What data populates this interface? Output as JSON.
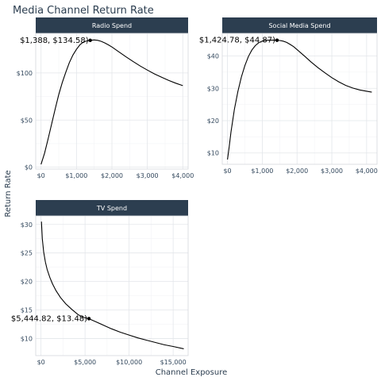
{
  "title": "Media Channel Return Rate",
  "chart_data": [
    {
      "type": "line",
      "panel_label": "Radio Spend",
      "xlabel": "Channel Exposure",
      "ylabel": "Return Rate",
      "xlim": [
        -150,
        4150
      ],
      "ylim": [
        -2,
        142
      ],
      "x_ticks": [
        0,
        1000,
        2000,
        3000,
        4000
      ],
      "x_tick_labels": [
        "$0",
        "$1,000",
        "$2,000",
        "$3,000",
        "$4,000"
      ],
      "y_ticks": [
        0,
        50,
        100
      ],
      "y_tick_labels": [
        "$0",
        "$50",
        "$100"
      ],
      "grid": true,
      "series": [
        {
          "x": [
            0,
            100,
            200,
            300,
            400,
            500,
            600,
            700,
            800,
            900,
            1000,
            1100,
            1200,
            1300,
            1388,
            1500,
            1600,
            1700,
            1800,
            1900,
            2000,
            2200,
            2400,
            2600,
            2800,
            3000,
            3200,
            3400,
            3600,
            3800,
            4000
          ],
          "y": [
            3,
            15,
            30,
            46,
            62,
            77,
            90,
            101,
            111,
            119,
            125,
            130,
            133,
            134,
            134.58,
            135,
            134.6,
            133.5,
            131.8,
            129.8,
            127.5,
            122.3,
            117,
            112,
            107.3,
            103,
            99,
            95.4,
            92.1,
            89.1,
            86.5
          ]
        }
      ],
      "marker": {
        "x": 1388,
        "y": 134.58
      },
      "annotation": "$1,388, $134.58)"
    },
    {
      "type": "line",
      "panel_label": "Social Media Spend",
      "xlabel": "Channel Exposure",
      "ylabel": "Return Rate",
      "xlim": [
        -150,
        4300
      ],
      "ylim": [
        6.5,
        47
      ],
      "x_ticks": [
        0,
        1000,
        2000,
        3000,
        4000
      ],
      "x_tick_labels": [
        "$0",
        "$1,000",
        "$2,000",
        "$3,000",
        "$4,000"
      ],
      "y_ticks": [
        10,
        20,
        30,
        40
      ],
      "y_tick_labels": [
        "$10",
        "$20",
        "$30",
        "$40"
      ],
      "grid": true,
      "series": [
        {
          "x": [
            0,
            50,
            100,
            200,
            300,
            400,
            500,
            600,
            700,
            800,
            900,
            1000,
            1100,
            1200,
            1300,
            1425,
            1500,
            1600,
            1700,
            1800,
            1900,
            2000,
            2200,
            2400,
            2600,
            2800,
            3000,
            3200,
            3400,
            3600,
            3800,
            4000,
            4150
          ],
          "y": [
            8,
            12,
            16.5,
            23.5,
            29,
            33.5,
            37,
            39.8,
            41.8,
            43.2,
            44.1,
            44.6,
            44.85,
            44.9,
            44.88,
            44.87,
            44.8,
            44.6,
            44.2,
            43.6,
            42.9,
            42,
            40.1,
            38.2,
            36.4,
            34.8,
            33.3,
            32,
            30.9,
            30.1,
            29.5,
            29.1,
            28.8
          ]
        }
      ],
      "marker": {
        "x": 1425,
        "y": 44.87
      },
      "annotation": "$1,424.78, $44.87)"
    },
    {
      "type": "line",
      "panel_label": "TV Spend",
      "xlabel": "Channel Exposure",
      "ylabel": "Return Rate",
      "xlim": [
        -600,
        16700
      ],
      "ylim": [
        7,
        31.5
      ],
      "x_ticks": [
        0,
        5000,
        10000,
        15000
      ],
      "x_tick_labels": [
        "$0",
        "$5,000",
        "$10,000",
        "$15,000"
      ],
      "y_ticks": [
        10,
        15,
        20,
        25,
        30
      ],
      "y_tick_labels": [
        "$10",
        "$15",
        "$20",
        "$25",
        "$30"
      ],
      "grid": true,
      "series": [
        {
          "x": [
            50,
            150,
            300,
            500,
            700,
            1000,
            1300,
            1700,
            2200,
            2800,
            3500,
            4200,
            4800,
            5400,
            6000,
            7000,
            8000,
            9000,
            10000,
            11000,
            12000,
            13000,
            14000,
            15000,
            16200
          ],
          "y": [
            30.5,
            27.5,
            25.2,
            23.4,
            22.1,
            20.7,
            19.6,
            18.4,
            17.2,
            16.1,
            15.1,
            14.2,
            13.7,
            13.48,
            13.1,
            12.4,
            11.7,
            11.1,
            10.6,
            10.1,
            9.7,
            9.3,
            8.9,
            8.6,
            8.2
          ]
        }
      ],
      "marker": {
        "x": 5445,
        "y": 13.48
      },
      "annotation": "$5,444.82, $13.48)"
    }
  ],
  "axis_titles": {
    "x": "Channel Exposure",
    "y": "Return Rate"
  },
  "colors": {
    "strip_background": "#2c3e50",
    "strip_text": "#ffffff",
    "line": "#000000",
    "title": "#2c3e50",
    "tick_text": "#34495e"
  }
}
